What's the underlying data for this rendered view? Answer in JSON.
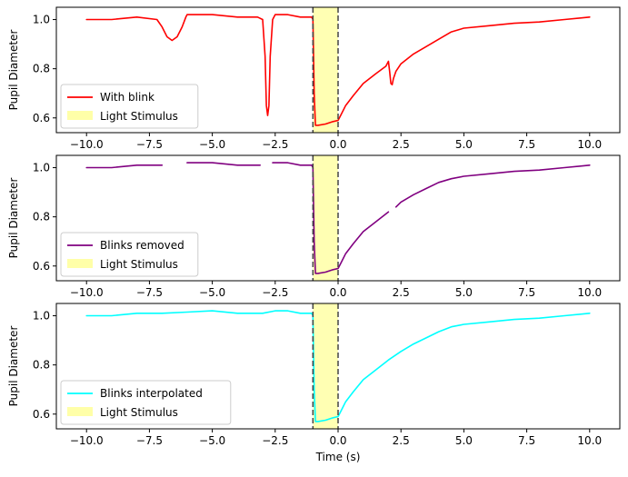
{
  "chart_data": [
    {
      "type": "line",
      "ylabel": "Pupil Diameter",
      "xlabel": "",
      "xlim": [
        -11.2,
        11.2
      ],
      "ylim": [
        0.54,
        1.05
      ],
      "xticks": [
        -10,
        -7.5,
        -5,
        -2.5,
        0,
        2.5,
        5,
        7.5,
        10
      ],
      "xtick_labels": [
        "−10.0",
        "−7.5",
        "−5.0",
        "−2.5",
        "0.0",
        "2.5",
        "5.0",
        "7.5",
        "10.0"
      ],
      "yticks": [
        0.6,
        0.8,
        1.0
      ],
      "ytick_labels": [
        "0.6",
        "0.8",
        "1.0"
      ],
      "stimulus": {
        "start": -1.0,
        "end": 0.0,
        "label": "Light Stimulus",
        "color": "#ffff99"
      },
      "legend_position": "lower-left",
      "series": [
        {
          "name": "With blink",
          "color": "#ff0000",
          "x": [
            -10.0,
            -9.0,
            -8.0,
            -7.2,
            -7.0,
            -6.8,
            -6.6,
            -6.4,
            -6.2,
            -6.05,
            -6.0,
            -5.0,
            -4.0,
            -3.2,
            -3.0,
            -2.9,
            -2.85,
            -2.8,
            -2.75,
            -2.7,
            -2.6,
            -2.5,
            -2.0,
            -1.5,
            -1.05,
            -1.0,
            -0.95,
            -0.9,
            -0.8,
            -0.5,
            -0.2,
            0.0,
            0.1,
            0.3,
            0.6,
            1.0,
            1.5,
            1.9,
            2.0,
            2.05,
            2.1,
            2.15,
            2.2,
            2.3,
            2.5,
            3.0,
            3.5,
            4.0,
            4.5,
            5.0,
            6.0,
            7.0,
            8.0,
            9.0,
            10.0
          ],
          "y": [
            1.0,
            1.0,
            1.01,
            1.0,
            0.97,
            0.93,
            0.915,
            0.93,
            0.97,
            1.01,
            1.02,
            1.02,
            1.01,
            1.01,
            1.0,
            0.85,
            0.65,
            0.61,
            0.65,
            0.85,
            1.0,
            1.02,
            1.02,
            1.01,
            1.01,
            1.0,
            0.7,
            0.57,
            0.57,
            0.575,
            0.585,
            0.59,
            0.61,
            0.65,
            0.69,
            0.74,
            0.78,
            0.81,
            0.83,
            0.79,
            0.74,
            0.735,
            0.76,
            0.79,
            0.82,
            0.86,
            0.89,
            0.92,
            0.95,
            0.965,
            0.975,
            0.985,
            0.99,
            1.0,
            1.01
          ]
        }
      ]
    },
    {
      "type": "line",
      "ylabel": "Pupil Diameter",
      "xlabel": "",
      "xlim": [
        -11.2,
        11.2
      ],
      "ylim": [
        0.54,
        1.05
      ],
      "xticks": [
        -10,
        -7.5,
        -5,
        -2.5,
        0,
        2.5,
        5,
        7.5,
        10
      ],
      "xtick_labels": [
        "−10.0",
        "−7.5",
        "−5.0",
        "−2.5",
        "0.0",
        "2.5",
        "5.0",
        "7.5",
        "10.0"
      ],
      "yticks": [
        0.6,
        0.8,
        1.0
      ],
      "ytick_labels": [
        "0.6",
        "0.8",
        "1.0"
      ],
      "stimulus": {
        "start": -1.0,
        "end": 0.0,
        "label": "Light Stimulus",
        "color": "#ffff99"
      },
      "legend_position": "lower-left",
      "series": [
        {
          "name": "Blinks removed",
          "color": "#800080",
          "segments": [
            {
              "x": [
                -10.0,
                -9.0,
                -8.0,
                -7.0
              ],
              "y": [
                1.0,
                1.0,
                1.01,
                1.01
              ]
            },
            {
              "x": [
                -6.0,
                -5.0,
                -4.0,
                -3.1
              ],
              "y": [
                1.02,
                1.02,
                1.01,
                1.01
              ]
            },
            {
              "x": [
                -2.6,
                -2.0,
                -1.5,
                -1.05,
                -1.0,
                -0.95,
                -0.9,
                -0.8,
                -0.5,
                -0.2,
                0.0,
                0.1,
                0.3,
                0.6,
                1.0,
                1.5,
                2.0
              ],
              "y": [
                1.02,
                1.02,
                1.01,
                1.01,
                1.0,
                0.7,
                0.57,
                0.57,
                0.575,
                0.585,
                0.59,
                0.61,
                0.65,
                0.69,
                0.74,
                0.78,
                0.82
              ]
            },
            {
              "x": [
                2.3,
                2.5,
                3.0,
                3.5,
                4.0,
                4.5,
                5.0,
                6.0,
                7.0,
                8.0,
                9.0,
                10.0
              ],
              "y": [
                0.84,
                0.86,
                0.89,
                0.915,
                0.94,
                0.955,
                0.965,
                0.975,
                0.985,
                0.99,
                1.0,
                1.01
              ]
            }
          ]
        }
      ]
    },
    {
      "type": "line",
      "ylabel": "Pupil Diameter",
      "xlabel": "Time (s)",
      "xlim": [
        -11.2,
        11.2
      ],
      "ylim": [
        0.54,
        1.05
      ],
      "xticks": [
        -10,
        -7.5,
        -5,
        -2.5,
        0,
        2.5,
        5,
        7.5,
        10
      ],
      "xtick_labels": [
        "−10.0",
        "−7.5",
        "−5.0",
        "−2.5",
        "0.0",
        "2.5",
        "5.0",
        "7.5",
        "10.0"
      ],
      "yticks": [
        0.6,
        0.8,
        1.0
      ],
      "ytick_labels": [
        "0.6",
        "0.8",
        "1.0"
      ],
      "stimulus": {
        "start": -1.0,
        "end": 0.0,
        "label": "Light Stimulus",
        "color": "#ffff99"
      },
      "legend_position": "lower-left",
      "series": [
        {
          "name": "Blinks interpolated",
          "color": "#00ffff",
          "x": [
            -10.0,
            -9.0,
            -8.0,
            -7.0,
            -6.0,
            -5.0,
            -4.0,
            -3.0,
            -2.5,
            -2.0,
            -1.5,
            -1.05,
            -1.0,
            -0.95,
            -0.9,
            -0.8,
            -0.5,
            -0.2,
            0.0,
            0.1,
            0.3,
            0.6,
            1.0,
            1.5,
            2.0,
            2.5,
            3.0,
            3.5,
            4.0,
            4.5,
            5.0,
            6.0,
            7.0,
            8.0,
            9.0,
            10.0
          ],
          "y": [
            1.0,
            1.0,
            1.01,
            1.01,
            1.015,
            1.02,
            1.01,
            1.01,
            1.02,
            1.02,
            1.01,
            1.01,
            1.0,
            0.7,
            0.57,
            0.57,
            0.575,
            0.585,
            0.59,
            0.61,
            0.65,
            0.69,
            0.74,
            0.78,
            0.82,
            0.855,
            0.885,
            0.91,
            0.935,
            0.955,
            0.965,
            0.975,
            0.985,
            0.99,
            1.0,
            1.01
          ]
        }
      ]
    }
  ]
}
